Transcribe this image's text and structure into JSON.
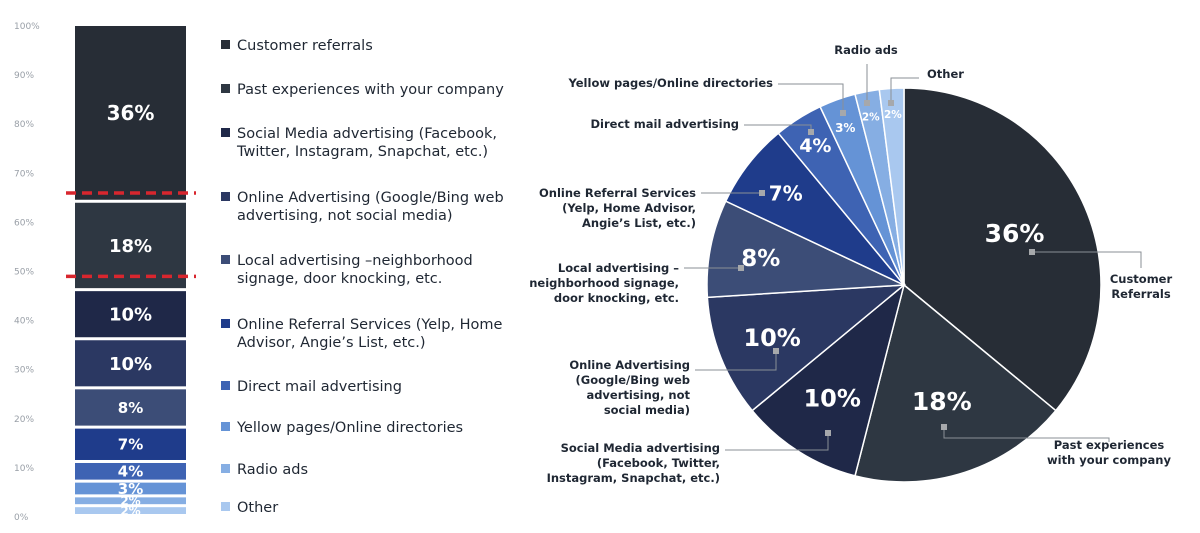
{
  "chart_data": [
    {
      "type": "bar",
      "stacked": true,
      "y_ticks": [
        "0%",
        "10%",
        "20%",
        "30%",
        "40%",
        "50%",
        "60%",
        "70%",
        "80%",
        "90%",
        "100%"
      ],
      "ylim": [
        0,
        100
      ],
      "series": [
        {
          "name": "Other",
          "value": 2,
          "label": "2%",
          "color": "#a9c8ef"
        },
        {
          "name": "Radio ads",
          "value": 2,
          "label": "2%",
          "color": "#86aee3"
        },
        {
          "name": "Yellow pages/Online directories",
          "value": 3,
          "label": "3%",
          "color": "#6593d6"
        },
        {
          "name": "Direct mail advertising",
          "value": 4,
          "label": "4%",
          "color": "#3e63b3"
        },
        {
          "name": "Online Referral Services (Yelp, Home Advisor, Angie’s List, etc.)",
          "value": 7,
          "label": "7%",
          "color": "#1f3c8b"
        },
        {
          "name": "Local advertising –neighborhood signage, door knocking, etc.",
          "value": 8,
          "label": "8%",
          "color": "#3c4d77"
        },
        {
          "name": "Online Advertising (Google/Bing web advertising, not social media)",
          "value": 10,
          "label": "10%",
          "color": "#2b3862"
        },
        {
          "name": "Social Media advertising (Facebook, Twitter, Instagram, Snapchat, etc.)",
          "value": 10,
          "label": "10%",
          "color": "#1f2848"
        },
        {
          "name": "Past experiences with your company",
          "value": 18,
          "label": "18%",
          "color": "#2e3742"
        },
        {
          "name": "Customer referrals",
          "value": 36,
          "label": "36%",
          "color": "#272d36"
        }
      ],
      "annotations": [
        "red dashed line at 49%",
        "red dashed line at 66%"
      ]
    },
    {
      "type": "pie",
      "slices": [
        {
          "name": "Customer Referrals",
          "value": 36,
          "label": "36%",
          "color": "#272d36"
        },
        {
          "name": "Past experiences with your company",
          "value": 18,
          "label": "18%",
          "color": "#2e3742"
        },
        {
          "name": "Social Media advertising (Facebook, Twitter, Instagram, Snapchat, etc.)",
          "value": 10,
          "label": "10%",
          "color": "#1f2848"
        },
        {
          "name": "Online Advertising (Google/Bing web advertising, not social media)",
          "value": 10,
          "label": "10%",
          "color": "#2b3862"
        },
        {
          "name": "Local advertising – neighborhood signage, door knocking, etc.",
          "value": 8,
          "label": "8%",
          "color": "#3c4d77"
        },
        {
          "name": "Online Referral Services (Yelp, Home Advisor, Angie’s List, etc.)",
          "value": 7,
          "label": "7%",
          "color": "#1f3c8b"
        },
        {
          "name": "Direct mail advertising",
          "value": 4,
          "label": "4%",
          "color": "#3e63b3"
        },
        {
          "name": "Yellow pages/Online directories",
          "value": 3,
          "label": "3%",
          "color": "#6593d6"
        },
        {
          "name": "Radio ads",
          "value": 2,
          "label": "2%",
          "color": "#86aee3"
        },
        {
          "name": "Other",
          "value": 2,
          "label": "2%",
          "color": "#a9c8ef"
        }
      ]
    }
  ],
  "legend": [
    {
      "text": "Customer referrals",
      "color": "#272d36"
    },
    {
      "text": "Past experiences with your company",
      "color": "#2e3742"
    },
    {
      "text": "Social Media advertising (Facebook,\nTwitter, Instagram, Snapchat, etc.)",
      "color": "#1f2848"
    },
    {
      "text": "Online Advertising (Google/Bing web\nadvertising, not social media)",
      "color": "#2b3862"
    },
    {
      "text": "Local advertising –neighborhood\nsignage, door knocking, etc.",
      "color": "#3c4d77"
    },
    {
      "text": "Online Referral Services (Yelp, Home\nAdvisor, Angie’s List, etc.)",
      "color": "#1f3c8b"
    },
    {
      "text": "Direct mail advertising",
      "color": "#3e63b3"
    },
    {
      "text": "Yellow pages/Online directories",
      "color": "#6593d6"
    },
    {
      "text": "Radio ads",
      "color": "#86aee3"
    },
    {
      "text": "Other",
      "color": "#a9c8ef"
    }
  ],
  "pie_callouts": [
    "Customer\nReferrals",
    "Past experiences\nwith your company",
    "Social Media advertising\n(Facebook, Twitter,\nInstagram, Snapchat, etc.)",
    "Online Advertising\n(Google/Bing web\nadvertising, not\nsocial media)",
    "Local advertising –\nneighborhood signage,\ndoor knocking, etc.",
    "Online Referral Services\n(Yelp, Home Advisor,\nAngie’s List, etc.)",
    "Direct mail advertising",
    "Yellow pages/Online directories",
    "Radio ads",
    "Other"
  ],
  "colors": {
    "annotation_line": "#d8262e",
    "leader_line": "#8a8f96",
    "marker": "#a6a8ab",
    "tick_text": "#9aa0a8"
  }
}
